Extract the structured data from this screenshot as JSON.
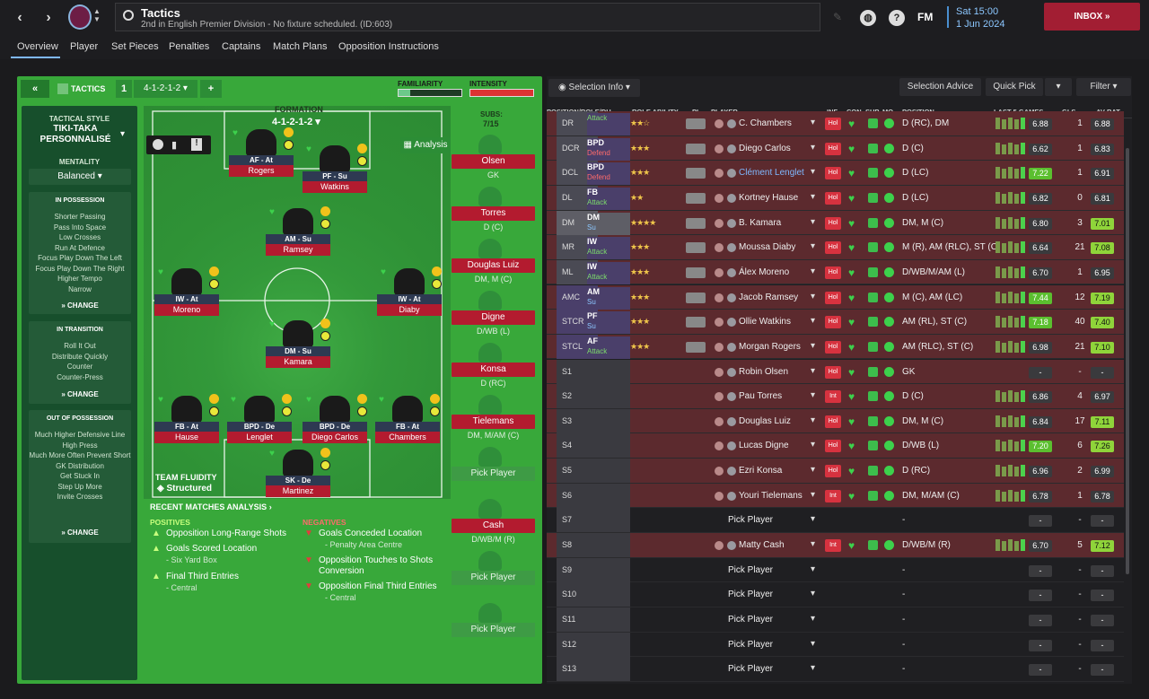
{
  "header": {
    "title": "Tactics",
    "subtitle": "2nd in English Premier Division - No fixture scheduled. (ID:603)",
    "time": "Sat 15:00",
    "date": "1 Jun 2024",
    "inbox_label": "INBOX",
    "fm_label": "FM"
  },
  "tabs": [
    "Overview",
    "Player",
    "Set Pieces",
    "Penalties",
    "Captains",
    "Match Plans",
    "Opposition Instructions"
  ],
  "tactics_bar": {
    "label": "TACTICS",
    "slot": "1",
    "formation_select": "4-1-2-1-2",
    "familiarity_label": "FAMILIARITY",
    "intensity_label": "INTENSITY"
  },
  "style": {
    "title": "TACTICAL STYLE",
    "name": "TIKI-TAKA PERSONNALISÉ",
    "mentality_label": "MENTALITY",
    "mentality": "Balanced",
    "in_possession": {
      "title": "IN POSSESSION",
      "items": [
        "Shorter Passing",
        "Pass Into Space",
        "Low Crosses",
        "Run At Defence",
        "Focus Play Down The Left",
        "Focus Play Down The Right",
        "Higher Tempo",
        "Narrow"
      ],
      "change": "CHANGE"
    },
    "in_transition": {
      "title": "IN TRANSITION",
      "items": [
        "Roll It Out",
        "Distribute Quickly",
        "Counter",
        "Counter-Press"
      ],
      "change": "CHANGE"
    },
    "out_possession": {
      "title": "OUT OF POSSESSION",
      "items": [
        "Much Higher Defensive Line",
        "High Press",
        "Much More Often Prevent Short GK Distribution",
        "Get Stuck In",
        "Step Up More",
        "Invite Crosses"
      ],
      "change": "CHANGE"
    }
  },
  "formation": {
    "label": "FORMATION",
    "value": "4-1-2-1-2",
    "analysis": "Analysis",
    "fluidity_label": "TEAM FLUIDITY",
    "fluidity": "Structured"
  },
  "pitch_players": [
    {
      "role": "AF - At",
      "name": "Rogers"
    },
    {
      "role": "PF - Su",
      "name": "Watkins"
    },
    {
      "role": "AM - Su",
      "name": "Ramsey"
    },
    {
      "role": "IW - At",
      "name": "Moreno"
    },
    {
      "role": "IW - At",
      "name": "Diaby"
    },
    {
      "role": "DM - Su",
      "name": "Kamara"
    },
    {
      "role": "FB - At",
      "name": "Hause"
    },
    {
      "role": "BPD - De",
      "name": "Lenglet"
    },
    {
      "role": "BPD - De",
      "name": "Diego Carlos"
    },
    {
      "role": "FB - At",
      "name": "Chambers"
    },
    {
      "role": "SK - De",
      "name": "Martinez"
    }
  ],
  "subs": {
    "label": "SUBS:",
    "count": "7/15",
    "pick_label": "Pick Player",
    "items": [
      {
        "name": "Olsen",
        "pos": "GK"
      },
      {
        "name": "Torres",
        "pos": "D (C)"
      },
      {
        "name": "Douglas Luiz",
        "pos": "DM, M (C)"
      },
      {
        "name": "Digne",
        "pos": "D/WB (L)"
      },
      {
        "name": "Konsa",
        "pos": "D (RC)"
      },
      {
        "name": "Tielemans",
        "pos": "DM, M/AM (C)"
      },
      {
        "name": "",
        "pos": ""
      },
      {
        "name": "Cash",
        "pos": "D/WB/M (R)"
      },
      {
        "name": "",
        "pos": ""
      },
      {
        "name": "",
        "pos": ""
      }
    ]
  },
  "analysis": {
    "title": "RECENT MATCHES ANALYSIS",
    "positives_label": "POSITIVES",
    "negatives_label": "NEGATIVES",
    "positives": [
      {
        "main": "Opposition Long-Range Shots",
        "sub": ""
      },
      {
        "main": "Goals Scored Location",
        "sub": "- Six Yard Box"
      },
      {
        "main": "Final Third Entries",
        "sub": "- Central"
      }
    ],
    "negatives": [
      {
        "main": "Goals Conceded Location",
        "sub": "- Penalty Area Centre"
      },
      {
        "main": "Opposition Touches to Shots Conversion",
        "sub": ""
      },
      {
        "main": "Opposition Final Third Entries",
        "sub": "- Central"
      }
    ]
  },
  "toolbar": {
    "selection_info": "Selection Info",
    "selection_advice": "Selection Advice",
    "quick_pick": "Quick Pick",
    "filter": "Filter"
  },
  "columns": [
    "POSITION/ROLE/DU...",
    "ROLE ABILITY",
    "PI",
    "PLAYER",
    "INF",
    "CON",
    "SHP",
    "MO...",
    "POSITION",
    "LAST 5 GAMES",
    "GLS",
    "AV RAT"
  ],
  "rows": [
    {
      "pos": "DR",
      "role": "",
      "duty": "Attack",
      "stars": "★★☆",
      "player": "C. Chambers",
      "inf": "Hol",
      "position": "D (RC), DM",
      "last5": "6.88",
      "gls": "1",
      "avrat": "6.88",
      "hl": false
    },
    {
      "pos": "DCR",
      "role": "BPD",
      "duty": "Defend",
      "stars": "★★★",
      "player": "Diego Carlos",
      "inf": "Hol",
      "position": "D (C)",
      "last5": "6.62",
      "gls": "1",
      "avrat": "6.83",
      "hl": false
    },
    {
      "pos": "DCL",
      "role": "BPD",
      "duty": "Defend",
      "stars": "★★★",
      "player": "Clément Lenglet",
      "inf": "Hol",
      "position": "D (LC)",
      "last5": "7.22",
      "gls": "1",
      "avrat": "6.91",
      "hl": true
    },
    {
      "pos": "DL",
      "role": "FB",
      "duty": "Attack",
      "stars": "★★",
      "player": "Kortney Hause",
      "inf": "Hol",
      "position": "D (LC)",
      "last5": "6.82",
      "gls": "0",
      "avrat": "6.81",
      "hl": false
    },
    {
      "pos": "DM",
      "role": "DM",
      "duty": "Su",
      "stars": "★★★★",
      "player": "B. Kamara",
      "inf": "Hol",
      "position": "DM, M (C)",
      "last5": "6.80",
      "gls": "3",
      "avrat": "7.01",
      "hl": false
    },
    {
      "pos": "MR",
      "role": "IW",
      "duty": "Attack",
      "stars": "★★★",
      "player": "Moussa Diaby",
      "inf": "Hol",
      "position": "M (R), AM (RLC), ST (C)",
      "last5": "6.64",
      "gls": "21",
      "avrat": "7.08",
      "hl": false
    },
    {
      "pos": "ML",
      "role": "IW",
      "duty": "Attack",
      "stars": "★★★",
      "player": "Álex Moreno",
      "inf": "Hol",
      "position": "D/WB/M/AM (L)",
      "last5": "6.70",
      "gls": "1",
      "avrat": "6.95",
      "hl": false
    },
    {
      "pos": "AMC",
      "role": "AM",
      "duty": "Su",
      "stars": "★★★",
      "player": "Jacob Ramsey",
      "inf": "Hol",
      "position": "M (C), AM (LC)",
      "last5": "7.44",
      "gls": "12",
      "avrat": "7.19",
      "hl": false
    },
    {
      "pos": "STCR",
      "role": "PF",
      "duty": "Su",
      "stars": "★★★",
      "player": "Ollie Watkins",
      "inf": "Hol",
      "position": "AM (RL), ST (C)",
      "last5": "7.18",
      "gls": "40",
      "avrat": "7.40",
      "hl": false
    },
    {
      "pos": "STCL",
      "role": "AF",
      "duty": "Attack",
      "stars": "★★★",
      "player": "Morgan Rogers",
      "inf": "Hol",
      "position": "AM (RLC), ST (C)",
      "last5": "6.98",
      "gls": "21",
      "avrat": "7.10",
      "hl": false
    },
    {
      "pos": "S1",
      "role": "",
      "duty": "",
      "stars": "",
      "player": "Robin Olsen",
      "inf": "Hol",
      "position": "GK",
      "last5": "-",
      "gls": "-",
      "avrat": "-",
      "hl": false
    },
    {
      "pos": "S2",
      "role": "",
      "duty": "",
      "stars": "",
      "player": "Pau Torres",
      "inf": "Int",
      "position": "D (C)",
      "last5": "6.86",
      "gls": "4",
      "avrat": "6.97",
      "hl": false
    },
    {
      "pos": "S3",
      "role": "",
      "duty": "",
      "stars": "",
      "player": "Douglas Luiz",
      "inf": "Hol",
      "position": "DM, M (C)",
      "last5": "6.84",
      "gls": "17",
      "avrat": "7.11",
      "hl": false
    },
    {
      "pos": "S4",
      "role": "",
      "duty": "",
      "stars": "",
      "player": "Lucas Digne",
      "inf": "Hol",
      "position": "D/WB (L)",
      "last5": "7.20",
      "gls": "6",
      "avrat": "7.26",
      "hl": false
    },
    {
      "pos": "S5",
      "role": "",
      "duty": "",
      "stars": "",
      "player": "Ezri Konsa",
      "inf": "Hol",
      "position": "D (RC)",
      "last5": "6.96",
      "gls": "2",
      "avrat": "6.99",
      "hl": false
    },
    {
      "pos": "S6",
      "role": "",
      "duty": "",
      "stars": "",
      "player": "Youri Tielemans",
      "inf": "Int",
      "position": "DM, M/AM (C)",
      "last5": "6.78",
      "gls": "1",
      "avrat": "6.78",
      "hl": false
    },
    {
      "pos": "S7",
      "role": "",
      "duty": "",
      "stars": "",
      "player": "Pick Player",
      "inf": "",
      "position": "-",
      "last5": "-",
      "gls": "-",
      "avrat": "-",
      "hl": false
    },
    {
      "pos": "S8",
      "role": "",
      "duty": "",
      "stars": "",
      "player": "Matty Cash",
      "inf": "Int",
      "position": "D/WB/M (R)",
      "last5": "6.70",
      "gls": "5",
      "avrat": "7.12",
      "hl": false
    },
    {
      "pos": "S9",
      "role": "",
      "duty": "",
      "stars": "",
      "player": "Pick Player",
      "inf": "",
      "position": "-",
      "last5": "-",
      "gls": "-",
      "avrat": "-",
      "hl": false
    },
    {
      "pos": "S10",
      "role": "",
      "duty": "",
      "stars": "",
      "player": "Pick Player",
      "inf": "",
      "position": "-",
      "last5": "-",
      "gls": "-",
      "avrat": "-",
      "hl": false
    },
    {
      "pos": "S11",
      "role": "",
      "duty": "",
      "stars": "",
      "player": "Pick Player",
      "inf": "",
      "position": "-",
      "last5": "-",
      "gls": "-",
      "avrat": "-",
      "hl": false
    },
    {
      "pos": "S12",
      "role": "",
      "duty": "",
      "stars": "",
      "player": "Pick Player",
      "inf": "",
      "position": "-",
      "last5": "-",
      "gls": "-",
      "avrat": "-",
      "hl": false
    },
    {
      "pos": "S13",
      "role": "",
      "duty": "",
      "stars": "",
      "player": "Pick Player",
      "inf": "",
      "position": "-",
      "last5": "-",
      "gls": "-",
      "avrat": "-",
      "hl": false
    }
  ],
  "colors": {
    "accent_red": "#b31b2f",
    "pitch_green": "#38a83a",
    "highlight_blue": "#7fb8ff",
    "rating_green": "#8fd43a"
  }
}
